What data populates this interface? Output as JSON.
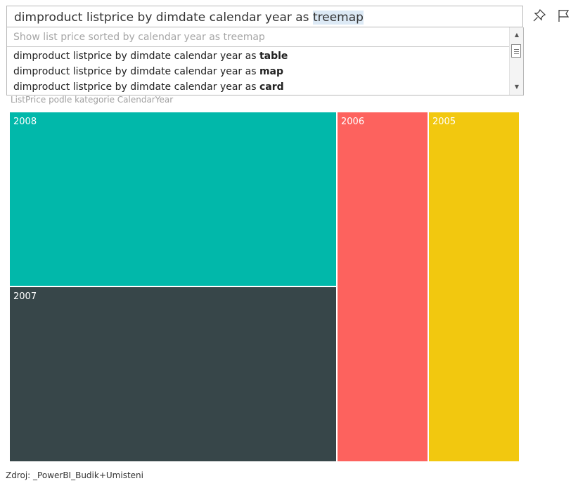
{
  "qa": {
    "query_prefix": "dimproduct listprice by dimdate calendar year as ",
    "query_highlight": "treemap"
  },
  "suggestions": {
    "restatement": "Show list price sorted by calendar year as treemap",
    "items": [
      {
        "prefix": "dimproduct listprice by dimdate calendar year as ",
        "bold": "table"
      },
      {
        "prefix": "dimproduct listprice by dimdate calendar year as ",
        "bold": "map"
      },
      {
        "prefix": "dimproduct listprice by dimdate calendar year as ",
        "bold": "card"
      }
    ]
  },
  "icons": {
    "pin": "pin-icon",
    "flag": "flag-icon"
  },
  "visual": {
    "title": "ListPrice podle kategorie CalendarYear"
  },
  "chart_data": {
    "type": "treemap",
    "title": "ListPrice podle kategorie CalendarYear",
    "categories": [
      "2008",
      "2007",
      "2006",
      "2005"
    ],
    "values": [
      32.2,
      32.1,
      17.9,
      17.8
    ],
    "value_unit": "share of total ListPrice (%) , estimated from tile areas",
    "colors": [
      "#01b8aa",
      "#374649",
      "#fd625e",
      "#f2c80f"
    ]
  },
  "footer": {
    "source": "Zdroj: _PowerBI_Budik+Umisteni"
  }
}
